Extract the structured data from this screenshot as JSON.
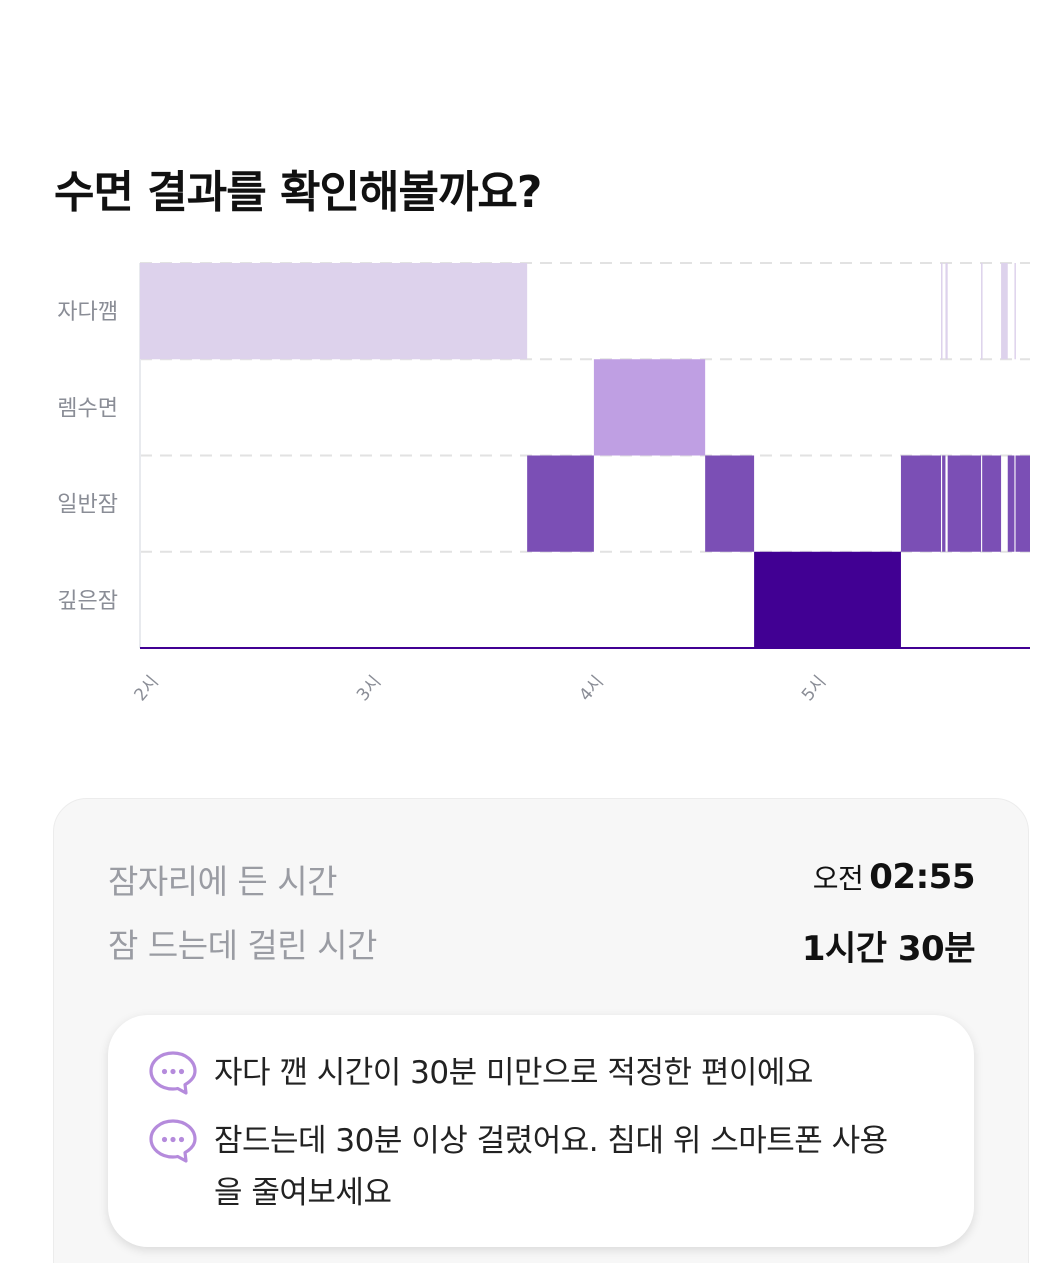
{
  "header": {
    "title": "수면 결과를 확인해볼까요?"
  },
  "chart_data": {
    "type": "hypnogram",
    "stages": [
      "자다깸",
      "렘수면",
      "일반잠",
      "깊은잠"
    ],
    "x_ticks": [
      "2시",
      "3시",
      "4시",
      "5시"
    ],
    "x_unit": "hour",
    "segments": [
      {
        "stage": "자다깸",
        "start": 2.0,
        "end": 3.74
      },
      {
        "stage": "일반잠",
        "start": 3.74,
        "end": 4.04
      },
      {
        "stage": "렘수면",
        "start": 4.04,
        "end": 4.54
      },
      {
        "stage": "일반잠",
        "start": 4.54,
        "end": 4.76
      },
      {
        "stage": "깊은잠",
        "start": 4.76,
        "end": 5.42
      },
      {
        "stage": "일반잠",
        "start": 5.42,
        "end": 5.6
      },
      {
        "stage": "자다깸",
        "start": 5.6,
        "end": 5.605
      },
      {
        "stage": "일반잠",
        "start": 5.605,
        "end": 5.62
      },
      {
        "stage": "자다깸",
        "start": 5.62,
        "end": 5.63
      },
      {
        "stage": "일반잠",
        "start": 5.63,
        "end": 5.78
      },
      {
        "stage": "자다깸",
        "start": 5.78,
        "end": 5.785
      },
      {
        "stage": "일반잠",
        "start": 5.785,
        "end": 5.87
      },
      {
        "stage": "자다깸",
        "start": 5.87,
        "end": 5.9
      },
      {
        "stage": "일반잠",
        "start": 5.9,
        "end": 5.93
      },
      {
        "stage": "자다깸",
        "start": 5.93,
        "end": 5.935
      },
      {
        "stage": "일반잠",
        "start": 5.935,
        "end": 6.0
      }
    ],
    "colors": {
      "자다깸": "#ddd2ec",
      "렘수면": "#bf9fe3",
      "일반잠": "#7b4fb5",
      "깊은잠": "#410093"
    },
    "grid": true
  },
  "summary": {
    "bedtime_label": "잠자리에 든 시간",
    "bedtime_ampm": "오전",
    "bedtime_value": "02:55",
    "latency_label": "잠 드는데 걸린 시간",
    "latency_value": "1시간 30분"
  },
  "advice": {
    "icon": "chat-bubble-icon",
    "icon_color": "#b58bdc",
    "items": [
      "자다 깬 시간이 30분 미만으로 적정한 편이에요",
      "잠드는데 30분 이상 걸렸어요. 침대 위 스마트폰 사용을 줄여보세요"
    ]
  }
}
